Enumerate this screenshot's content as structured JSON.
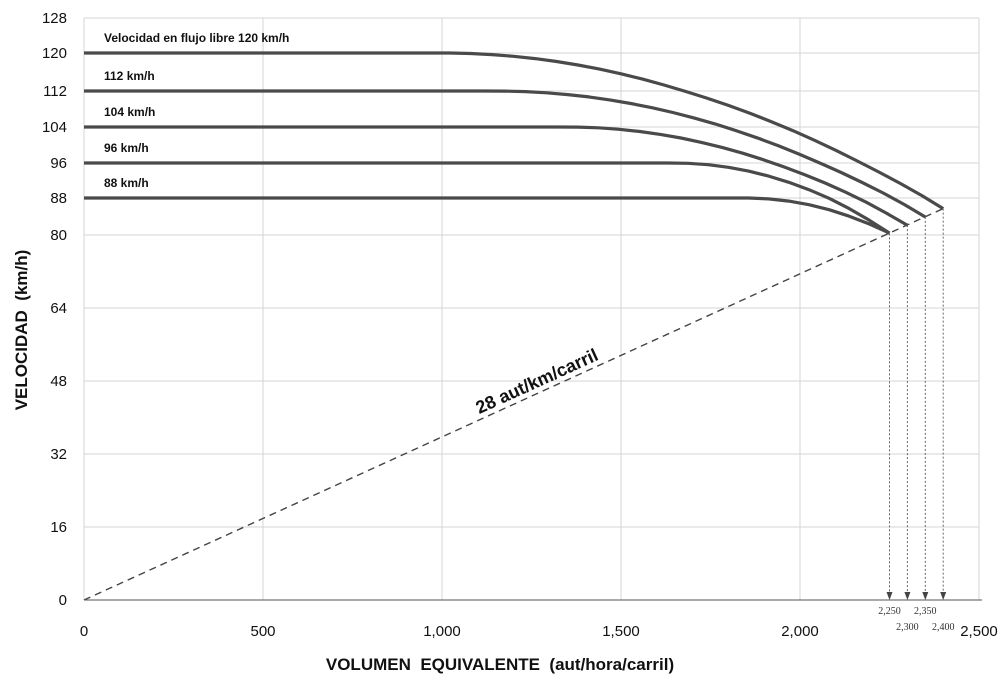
{
  "chart_data": {
    "type": "line",
    "xlabel": "VOLUMEN  EQUIVALENTE  (aut/hora/carril)",
    "ylabel": "VELOCIDAD  (km/h)",
    "xlim": [
      0,
      2500
    ],
    "ylim": [
      0,
      128
    ],
    "x_ticks": [
      {
        "value": 0,
        "label": "0"
      },
      {
        "value": 500,
        "label": "500"
      },
      {
        "value": 1000,
        "label": "1,000"
      },
      {
        "value": 1500,
        "label": "1,500"
      },
      {
        "value": 2000,
        "label": "2,000"
      },
      {
        "value": 2500,
        "label": "2,500"
      }
    ],
    "y_ticks": [
      {
        "value": 0,
        "label": "0"
      },
      {
        "value": 16,
        "label": "16"
      },
      {
        "value": 32,
        "label": "32"
      },
      {
        "value": 48,
        "label": "48"
      },
      {
        "value": 64,
        "label": "64"
      },
      {
        "value": 80,
        "label": "80"
      },
      {
        "value": 88,
        "label": "88"
      },
      {
        "value": 96,
        "label": "96"
      },
      {
        "value": 104,
        "label": "104"
      },
      {
        "value": 112,
        "label": "112"
      },
      {
        "value": 120,
        "label": "120"
      },
      {
        "value": 128,
        "label": "128"
      }
    ],
    "grid": true,
    "series": [
      {
        "name": "Velocidad en flujo libre 120 km/h",
        "ffs": 120,
        "breakpoint": 1000,
        "capacity": 2400,
        "speed_at_capacity": 85.7
      },
      {
        "name": "112 km/h",
        "ffs": 112,
        "breakpoint": 1150,
        "capacity": 2350,
        "speed_at_capacity": 83.9
      },
      {
        "name": "104 km/h",
        "ffs": 104,
        "breakpoint": 1350,
        "capacity": 2300,
        "speed_at_capacity": 82.1
      },
      {
        "name": "96 km/h",
        "ffs": 96,
        "breakpoint": 1650,
        "capacity": 2250,
        "speed_at_capacity": 80.4
      },
      {
        "name": "88 km/h",
        "ffs": 88,
        "breakpoint": 1850,
        "capacity": 2250,
        "speed_at_capacity": 80.4
      }
    ],
    "density_line": {
      "label": "28 aut/km/carril",
      "density": 28,
      "x_range": [
        0,
        2400
      ]
    },
    "capacity_annotations": [
      {
        "value": 2250,
        "label": "2,250"
      },
      {
        "value": 2300,
        "label": "2,300"
      },
      {
        "value": 2350,
        "label": "2,350"
      },
      {
        "value": 2400,
        "label": "2,400"
      }
    ]
  }
}
